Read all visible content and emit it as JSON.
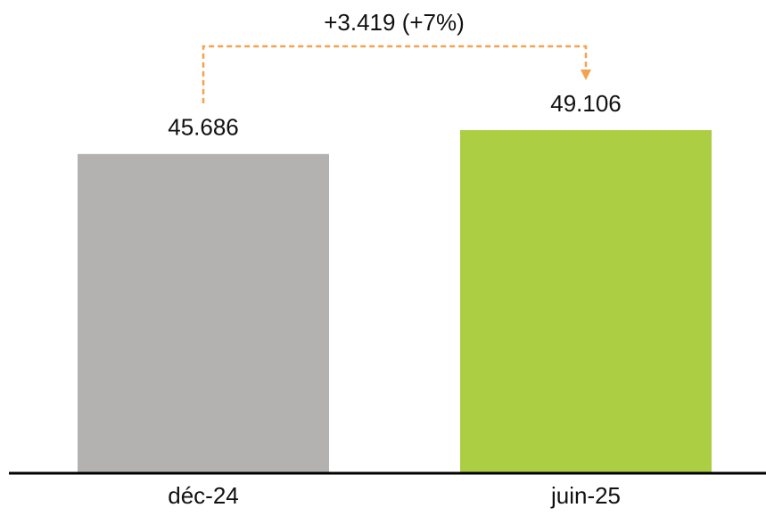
{
  "chart_data": {
    "type": "bar",
    "categories": [
      "déc-24",
      "juin-25"
    ],
    "values": [
      45686,
      49106
    ],
    "value_labels": [
      "45.686",
      "49.106"
    ],
    "colors": [
      "#b3b2b1",
      "#abce43"
    ],
    "annotation": "+3.419 (+7%)",
    "annotation_color": "#f4a24e"
  }
}
